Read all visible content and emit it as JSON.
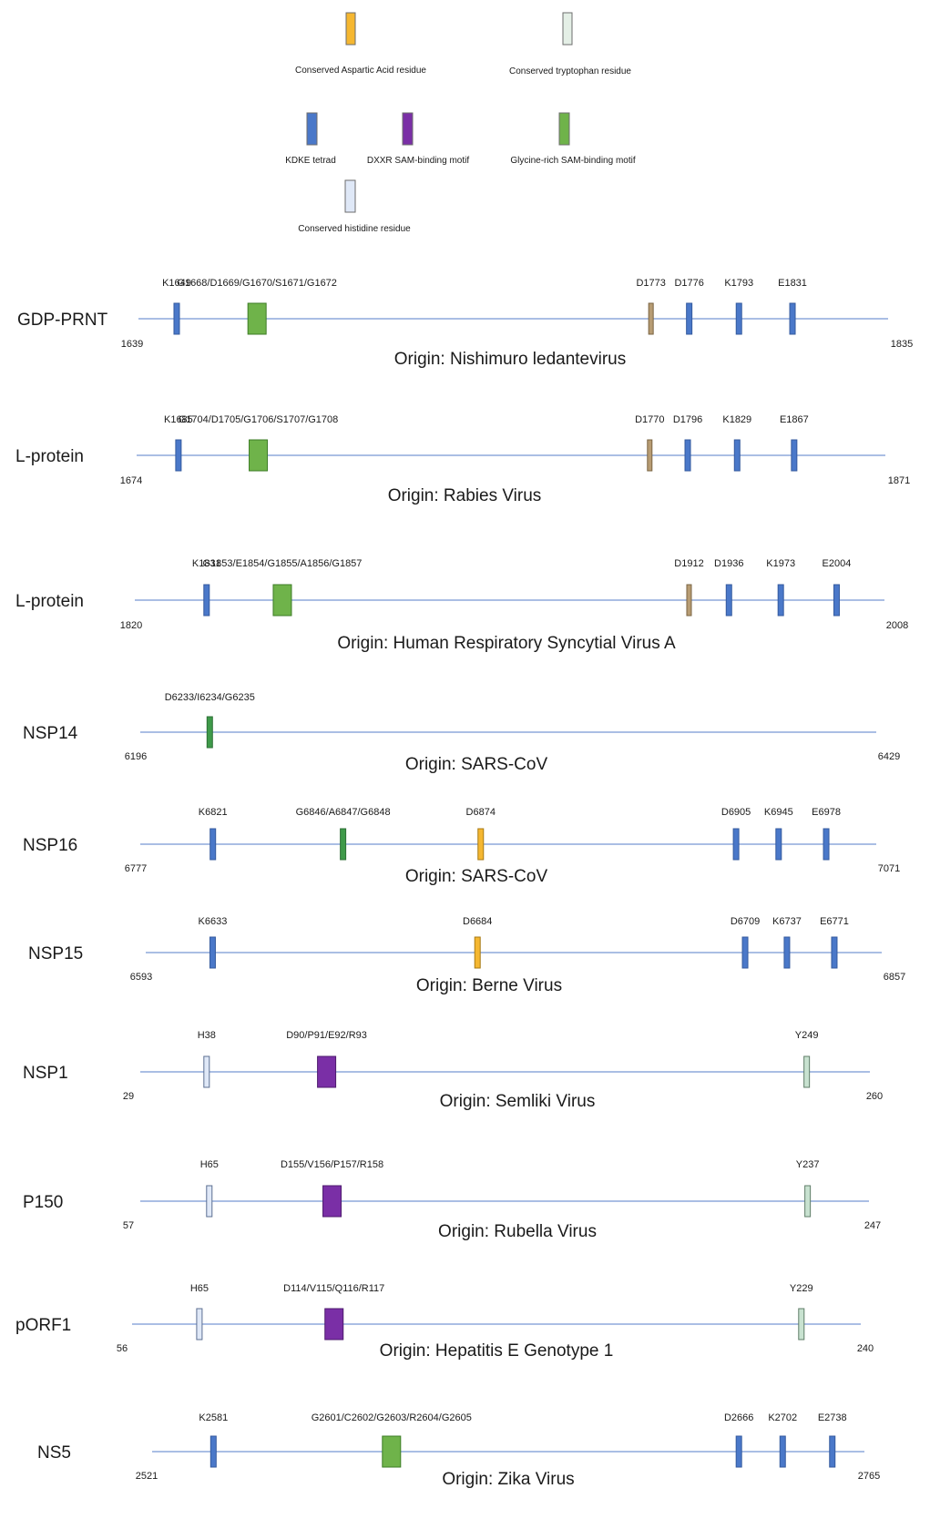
{
  "legend": [
    {
      "id": "asp",
      "label": "Conserved Aspartic Acid residue",
      "color": "#f5b731"
    },
    {
      "id": "trp",
      "label": "Conserved tryptophan residue",
      "color": "#e4efe6"
    },
    {
      "id": "kdke",
      "label": "KDKE tetrad",
      "color": "#4a78c9"
    },
    {
      "id": "dxxr",
      "label": "DXXR SAM-binding motif",
      "color": "#7a2fa6"
    },
    {
      "id": "gly",
      "label": "Glycine-rich SAM-binding motif",
      "color": "#6fb34a"
    },
    {
      "id": "his",
      "label": "Conserved histidine residue",
      "color": "#dfe8f7"
    }
  ],
  "colors": {
    "line": "#8ea9dc",
    "kdke": "#4a78c9",
    "gly": "#6fb34a",
    "asp": "#f5b731",
    "dxxr": "#7a2fa6",
    "his": "#dfe8f7",
    "trp": "#c8e2d0",
    "d_alt": "#b79c73"
  },
  "tracks": [
    {
      "name": "GDP-PRNT",
      "start": "1639",
      "end": "1835",
      "origin": "Origin: Nishimuro ledantevirus",
      "markers": [
        {
          "label": "K1649",
          "type": "kdke",
          "pos": 1649
        },
        {
          "label": "G1668/D1669/G1670/S1671/G1672",
          "type": "gly",
          "pos": 1670
        },
        {
          "label": "D1773",
          "type": "d_alt",
          "pos": 1773
        },
        {
          "label": "D1776",
          "type": "kdke",
          "pos": 1783
        },
        {
          "label": "K1793",
          "type": "kdke",
          "pos": 1796
        },
        {
          "label": "E1831",
          "type": "kdke",
          "pos": 1810
        }
      ]
    },
    {
      "name": "L-protein",
      "start": "1674",
      "end": "1871",
      "origin": "Origin: Rabies Virus",
      "markers": [
        {
          "label": "K1685",
          "type": "kdke",
          "pos": 1685
        },
        {
          "label": "G1704/D1705/G1706/S1707/G1708",
          "type": "gly",
          "pos": 1706
        },
        {
          "label": "D1770",
          "type": "d_alt",
          "pos": 1809
        },
        {
          "label": "D1796",
          "type": "kdke",
          "pos": 1819
        },
        {
          "label": "K1829",
          "type": "kdke",
          "pos": 1832
        },
        {
          "label": "E1867",
          "type": "kdke",
          "pos": 1847
        }
      ]
    },
    {
      "name": "L-protein",
      "start": "1820",
      "end": "2008",
      "origin": "Origin: Human Respiratory Syncytial Virus A",
      "markers": [
        {
          "label": "K1831",
          "type": "kdke",
          "pos": 1838
        },
        {
          "label": "G1853/E1854/G1855/A1856/G1857",
          "type": "gly",
          "pos": 1857
        },
        {
          "label": "D1912",
          "type": "d_alt",
          "pos": 1959
        },
        {
          "label": "D1936",
          "type": "kdke",
          "pos": 1969
        },
        {
          "label": "K1973",
          "type": "kdke",
          "pos": 1982
        },
        {
          "label": "E2004",
          "type": "kdke",
          "pos": 1996
        }
      ]
    },
    {
      "name": "NSP14",
      "start": "6196",
      "end": "6429",
      "origin": "Origin: SARS-CoV",
      "markers": [
        {
          "label": "D6233/I6234/G6235",
          "type": "gly_thin",
          "pos": 6218
        }
      ]
    },
    {
      "name": "NSP16",
      "start": "6777",
      "end": "7071",
      "origin": "Origin: SARS-CoV",
      "markers": [
        {
          "label": "K6821",
          "type": "kdke",
          "pos": 6806
        },
        {
          "label": "G6846/A6847/G6848",
          "type": "gly_thin",
          "pos": 6858
        },
        {
          "label": "D6874",
          "type": "asp",
          "pos": 6913
        },
        {
          "label": "D6905",
          "type": "kdke",
          "pos": 7015
        },
        {
          "label": "K6945",
          "type": "kdke",
          "pos": 7032
        },
        {
          "label": "E6978",
          "type": "kdke",
          "pos": 7051
        }
      ]
    },
    {
      "name": "NSP15",
      "start": "6593",
      "end": "6857",
      "origin": "Origin: Berne Virus",
      "markers": [
        {
          "label": "K6633",
          "type": "kdke",
          "pos": 6617
        },
        {
          "label": "D6684",
          "type": "asp",
          "pos": 6712
        },
        {
          "label": "D6709",
          "type": "kdke",
          "pos": 6808
        },
        {
          "label": "K6737",
          "type": "kdke",
          "pos": 6823
        },
        {
          "label": "E6771",
          "type": "kdke",
          "pos": 6840
        }
      ]
    },
    {
      "name": "NSP1",
      "start": "29",
      "end": "260",
      "origin": "Origin: Semliki Virus",
      "markers": [
        {
          "label": "H38",
          "type": "his",
          "pos": 50
        },
        {
          "label": "D90/P91/E92/R93",
          "type": "dxxr",
          "pos": 88
        },
        {
          "label": "Y249",
          "type": "trp",
          "pos": 240
        }
      ]
    },
    {
      "name": "P150",
      "start": "57",
      "end": "247",
      "origin": "Origin: Rubella Virus",
      "markers": [
        {
          "label": "H65",
          "type": "his",
          "pos": 75
        },
        {
          "label": "D155/V156/P157/R158",
          "type": "dxxr",
          "pos": 107
        },
        {
          "label": "Y237",
          "type": "trp",
          "pos": 231
        }
      ]
    },
    {
      "name": "pORF1",
      "start": "56",
      "end": "240",
      "origin": "Origin: Hepatitis E Genotype 1",
      "markers": [
        {
          "label": "H65",
          "type": "his",
          "pos": 73
        },
        {
          "label": "D114/V115/Q116/R117",
          "type": "dxxr",
          "pos": 107
        },
        {
          "label": "Y229",
          "type": "trp",
          "pos": 225
        }
      ]
    },
    {
      "name": "NS5",
      "start": "2521",
      "end": "2765",
      "origin": "Origin: Zika Virus",
      "markers": [
        {
          "label": "K2581",
          "type": "kdke",
          "pos": 2542
        },
        {
          "label": "G2601/C2602/G2603/R2604/G2605",
          "type": "gly",
          "pos": 2603
        },
        {
          "label": "D2666",
          "type": "kdke",
          "pos": 2722
        },
        {
          "label": "K2702",
          "type": "kdke",
          "pos": 2737
        },
        {
          "label": "E2738",
          "type": "kdke",
          "pos": 2754
        }
      ]
    }
  ]
}
